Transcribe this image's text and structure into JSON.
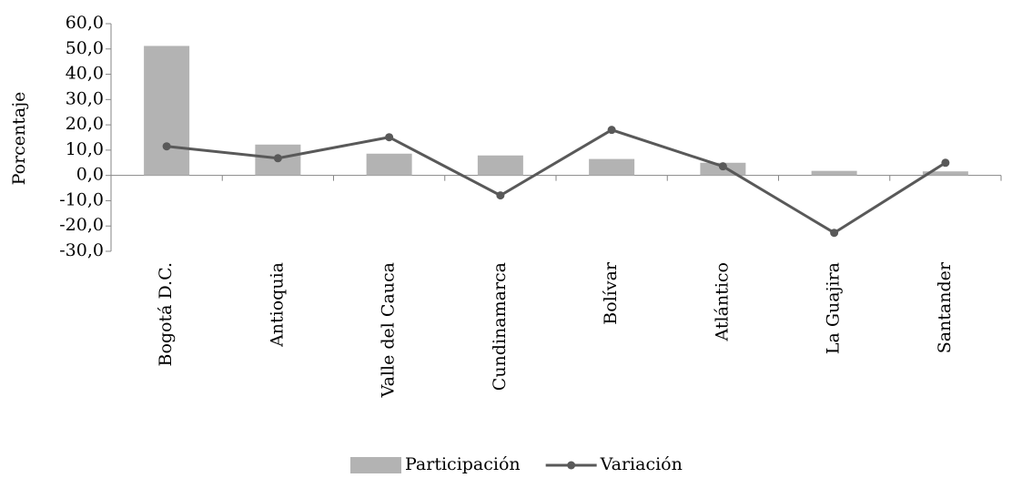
{
  "chart_data": {
    "type": "bar-line",
    "y_axis_label": "Porcentaje",
    "categories": [
      "Bogotá D.C.",
      "Antioquia",
      "Valle del Cauca",
      "Cundinamarca",
      "Bolívar",
      "Atlántico",
      "La Guajira",
      "Santander"
    ],
    "series": [
      {
        "name": "Participación",
        "type": "bar",
        "color": "#b3b3b3",
        "values": [
          51.2,
          12.2,
          8.6,
          7.9,
          6.5,
          5.0,
          1.8,
          1.6
        ]
      },
      {
        "name": "Variación",
        "type": "line",
        "color": "#595959",
        "values": [
          11.5,
          6.8,
          15.1,
          -7.9,
          18.0,
          3.6,
          -22.7,
          5.0
        ]
      }
    ],
    "ylim": [
      -30,
      60
    ],
    "yticks": [
      {
        "value": -30,
        "label": "-30,0"
      },
      {
        "value": -20,
        "label": "-20,0"
      },
      {
        "value": -10,
        "label": "-10,0"
      },
      {
        "value": 0,
        "label": "0,0"
      },
      {
        "value": 10,
        "label": "10,0"
      },
      {
        "value": 20,
        "label": "20,0"
      },
      {
        "value": 30,
        "label": "30,0"
      },
      {
        "value": 40,
        "label": "40,0"
      },
      {
        "value": 50,
        "label": "50,0"
      },
      {
        "value": 60,
        "label": "60,0"
      }
    ],
    "grid": false
  }
}
